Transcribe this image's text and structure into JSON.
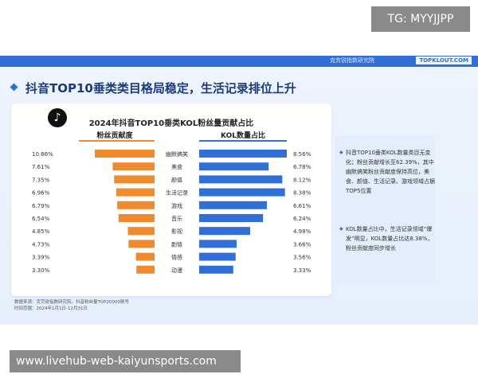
{
  "badge": "TG: MYYJJPP",
  "topbar": {
    "org": "克劳锐指数研究院",
    "logo": "TOPKLOUT.COM"
  },
  "headline": "抖音TOP10垂类类目格局稳定，生活记录排位上升",
  "chart_data": {
    "type": "bar",
    "title": "2024年抖音TOP10垂类KOL粉丝量贡献占比",
    "categories": [
      "幽默搞笑",
      "美食",
      "颜值",
      "生活记录",
      "游戏",
      "音乐",
      "影视",
      "剧情",
      "情感",
      "动漫"
    ],
    "series": [
      {
        "name": "粉丝贡献度",
        "values": [
          10.86,
          7.61,
          7.35,
          6.96,
          6.79,
          6.54,
          4.85,
          4.73,
          3.39,
          3.3
        ],
        "labels": [
          "10.86%",
          "7.61%",
          "7.35%",
          "6.96%",
          "6.79%",
          "6.54%",
          "4.85%",
          "4.73%",
          "3.39%",
          "3.30%"
        ],
        "color": "#f08a2c"
      },
      {
        "name": "KOL数量占比",
        "values": [
          8.56,
          6.78,
          8.12,
          8.38,
          6.61,
          6.24,
          4.98,
          3.66,
          3.56,
          3.33
        ],
        "labels": [
          "8.56%",
          "6.78%",
          "8.12%",
          "8.38%",
          "6.61%",
          "6.24%",
          "4.98%",
          "3.66%",
          "3.56%",
          "3.33%"
        ],
        "color": "#2f6fd6"
      }
    ]
  },
  "notes": [
    "抖音TOP10垂类KOL数量类目无变化；粉丝贡献增长至62.39%，其中幽默搞笑粉丝贡献度保持高位，美食、颜值、生活记录、游戏领域占据TOP5位置",
    "KOL数量占比中，生活记录领域“爆发”明显，KOL数量占比达8.38%，粉丝贡献度同步增长"
  ],
  "source_line1": "数据来源：克劳锐指数研究院，抖音粉丝量TOP20000账号",
  "source_line2": "时间范围：2024年1月1日-12月31日",
  "url_banner": "www.livehub-web-kaiyunsports.com"
}
